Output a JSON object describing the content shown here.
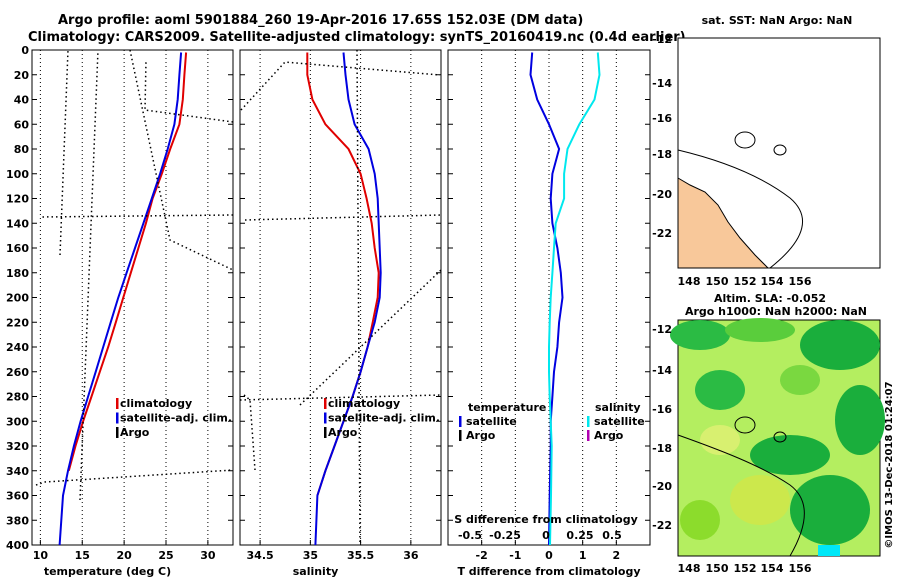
{
  "title": {
    "line1": "Argo profile: aoml 5901884_260 19-Apr-2016 17.65S 152.03E (DM data)",
    "line2": "Climatology: CARS2009. Satellite-adjusted climatology: synTS_20160419.nc (0.4d earlier)"
  },
  "colors": {
    "climatology": "#e00000",
    "satellite": "#0000e0",
    "argo": "#000000",
    "sat_salinity": "#00e8ee",
    "argo_salinity": "#b000b0",
    "land": "#f8c89a",
    "sla_light": "#b4ee60",
    "sla_dark": "#1aae3c"
  },
  "chart_data": [
    {
      "type": "line",
      "name": "temperature",
      "xlabel": "temperature (deg C)",
      "xlim": [
        9,
        33
      ],
      "ylim": [
        400,
        0
      ],
      "xticks": [
        10,
        15,
        20,
        25,
        30
      ],
      "xtick_labels": [
        "10",
        "15",
        "20",
        "25",
        "30"
      ],
      "yticks": [
        0,
        20,
        40,
        60,
        80,
        100,
        120,
        140,
        160,
        180,
        200,
        220,
        240,
        260,
        280,
        300,
        320,
        340,
        360,
        380,
        400
      ],
      "ytick_labels": [
        "0",
        "20",
        "40",
        "60",
        "80",
        "100",
        "120",
        "140",
        "160",
        "180",
        "200",
        "220",
        "240",
        "260",
        "280",
        "300",
        "320",
        "340",
        "360",
        "380",
        "400"
      ],
      "series": [
        {
          "name": "climatology",
          "x": [
            27.4,
            27.2,
            27.0,
            26.6,
            25.5,
            24.5,
            23.4,
            22.6,
            21.7,
            20.8,
            19.9,
            19.0,
            18.1,
            17.1,
            16.1,
            15.1,
            14.2,
            13.4
          ],
          "y": [
            2,
            20,
            40,
            60,
            80,
            100,
            120,
            140,
            160,
            180,
            200,
            220,
            240,
            260,
            280,
            300,
            320,
            340
          ]
        },
        {
          "name": "satellite-adj. clim.",
          "x": [
            26.8,
            26.6,
            26.4,
            26.0,
            25.2,
            24.3,
            23.3,
            22.3,
            21.3,
            20.3,
            19.3,
            18.4,
            17.5,
            16.6,
            15.7,
            14.8,
            14.0,
            13.3,
            12.7,
            12.3
          ],
          "y": [
            2,
            20,
            40,
            60,
            80,
            100,
            120,
            140,
            160,
            180,
            200,
            220,
            240,
            260,
            280,
            300,
            320,
            340,
            360,
            400
          ]
        }
      ],
      "legend": [
        "climatology",
        "satellite-adj. clim.",
        "Argo"
      ]
    },
    {
      "type": "line",
      "name": "salinity",
      "xlabel": "salinity",
      "xlim": [
        34.3,
        36.3
      ],
      "ylim": [
        400,
        0
      ],
      "xticks": [
        34.5,
        35,
        35.5,
        36
      ],
      "xtick_labels": [
        "34.5",
        "35",
        "35.5",
        "36"
      ],
      "series": [
        {
          "name": "climatology",
          "x": [
            34.97,
            34.97,
            35.02,
            35.15,
            35.38,
            35.5,
            35.56,
            35.61,
            35.64,
            35.68,
            35.67,
            35.62,
            35.57,
            35.5,
            35.42,
            35.33,
            35.24,
            35.15,
            35.07
          ],
          "y": [
            2,
            20,
            40,
            60,
            80,
            100,
            120,
            140,
            160,
            180,
            200,
            220,
            240,
            260,
            280,
            300,
            320,
            340,
            360
          ]
        },
        {
          "name": "satellite-adj. clim.",
          "x": [
            35.33,
            35.35,
            35.38,
            35.44,
            35.58,
            35.64,
            35.67,
            35.68,
            35.69,
            35.7,
            35.69,
            35.64,
            35.57,
            35.5,
            35.42,
            35.33,
            35.24,
            35.15,
            35.07,
            35.05
          ],
          "y": [
            2,
            20,
            40,
            60,
            80,
            100,
            120,
            140,
            160,
            180,
            200,
            220,
            240,
            260,
            280,
            300,
            320,
            340,
            360,
            400
          ]
        }
      ],
      "legend": [
        "climatology",
        "satellite-adj. clim.",
        "Argo"
      ]
    },
    {
      "type": "line",
      "name": "differences",
      "xlabel": "T difference from climatology",
      "xlim": [
        -3,
        3
      ],
      "ylim": [
        400,
        0
      ],
      "xticks": [
        -2,
        -1,
        0,
        1,
        2
      ],
      "xtick_labels": [
        "-2",
        "-1",
        "0",
        "1",
        "2"
      ],
      "top_axis_label": "S difference from climatology",
      "top_xticks": [
        -0.5,
        -0.25,
        0,
        0.25,
        0.5
      ],
      "top_xtick_labels": [
        "-0.5",
        "-0.25",
        "0",
        "0.25",
        "0.5"
      ],
      "series": [
        {
          "name": "temperature satellite",
          "x": [
            -0.5,
            -0.55,
            -0.35,
            0.0,
            0.3,
            0.1,
            0.05,
            0.1,
            0.25,
            0.35,
            0.4,
            0.3,
            0.25,
            0.15,
            0.1,
            0.05,
            0.05,
            0.02,
            0.0
          ],
          "y": [
            2,
            20,
            40,
            60,
            80,
            100,
            120,
            140,
            160,
            180,
            200,
            220,
            240,
            260,
            280,
            300,
            320,
            360,
            400
          ]
        },
        {
          "name": "salinity satellite",
          "x": [
            1.45,
            1.5,
            1.35,
            0.9,
            0.55,
            0.45,
            0.45,
            0.2,
            0.15,
            0.1,
            0.05,
            0.02,
            0.0,
            0.0,
            0.02,
            0.05,
            0.08,
            0.06,
            0.03
          ],
          "y": [
            2,
            20,
            40,
            60,
            80,
            100,
            120,
            140,
            160,
            180,
            200,
            220,
            240,
            260,
            280,
            300,
            320,
            360,
            400
          ]
        }
      ],
      "legend": {
        "temperature": "temperature",
        "salinity": "salinity",
        "satellite": "satellite",
        "argo": "Argo"
      }
    }
  ],
  "sst_map": {
    "title": "sat. SST: NaN Argo: NaN",
    "yticks": [
      "-12",
      "-14",
      "-16",
      "-18",
      "-20",
      "-22"
    ]
  },
  "sla_map": {
    "title1": "Altim. SLA: -0.052",
    "title2": "Argo h1000: NaN h2000: NaN",
    "yticks": [
      "-12",
      "-14",
      "-16",
      "-18",
      "-20",
      "-22"
    ],
    "xticks": [
      "148",
      "150",
      "152",
      "154",
      "156"
    ]
  },
  "credit": "©IMOS 13-Dec-2018 01:24:07"
}
